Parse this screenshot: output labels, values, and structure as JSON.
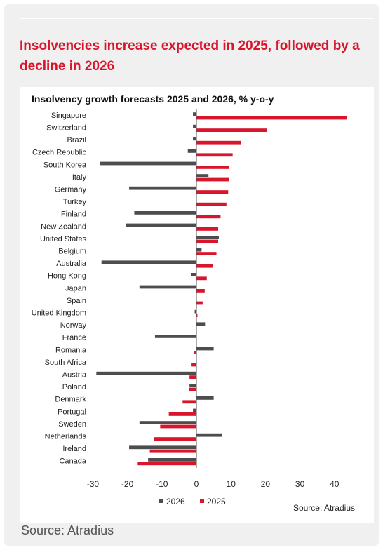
{
  "headline": "Insolvencies increase expected in 2025, followed by a decline in 2026",
  "footer_source": "Source: Atradius",
  "colors": {
    "series_2026": "#4d4d4d",
    "series_2025": "#d8152b",
    "accent": "#d8152b"
  },
  "chart_data": {
    "type": "bar",
    "orientation": "horizontal",
    "title": "Insolvency growth forecasts 2025 and 2026, % y-o-y",
    "source_note": "Source: Atradius",
    "categories": [
      "Singapore",
      "Switzerland",
      "Brazil",
      "Czech Republic",
      "South Korea",
      "Italy",
      "Germany",
      "Turkey",
      "Finland",
      "New Zealand",
      "United States",
      "Belgium",
      "Australia",
      "Hong Kong",
      "Japan",
      "Spain",
      "United Kingdom",
      "Norway",
      "France",
      "Romania",
      "South Africa",
      "Austria",
      "Poland",
      "Denmark",
      "Portugal",
      "Sweden",
      "Netherlands",
      "Ireland",
      "Canada"
    ],
    "series": [
      {
        "name": "2026",
        "values": [
          -1,
          -1,
          -1,
          -2.5,
          -28,
          3.5,
          -19.5,
          0,
          -18,
          -20.5,
          6.5,
          1.5,
          -27.5,
          -1.5,
          -16.5,
          0,
          -0.5,
          2.5,
          -12,
          5,
          0,
          -29,
          -2,
          5,
          -1,
          -16.5,
          7.5,
          -19.5,
          -14
        ]
      },
      {
        "name": "2025",
        "values": [
          43.5,
          20.5,
          13,
          10.5,
          9.5,
          9.5,
          9.2,
          8.7,
          7,
          6.3,
          6.3,
          5.8,
          4.8,
          3,
          2.4,
          1.8,
          0.3,
          0,
          0,
          -0.8,
          -1.4,
          -2,
          -2.2,
          -4,
          -8,
          -10.5,
          -12.3,
          -13.5,
          -17
        ]
      }
    ],
    "xlim": [
      -30,
      45
    ],
    "xticks": [
      -30,
      -20,
      -10,
      0,
      10,
      20,
      30,
      40
    ],
    "legend": "bottom",
    "grid": false
  }
}
